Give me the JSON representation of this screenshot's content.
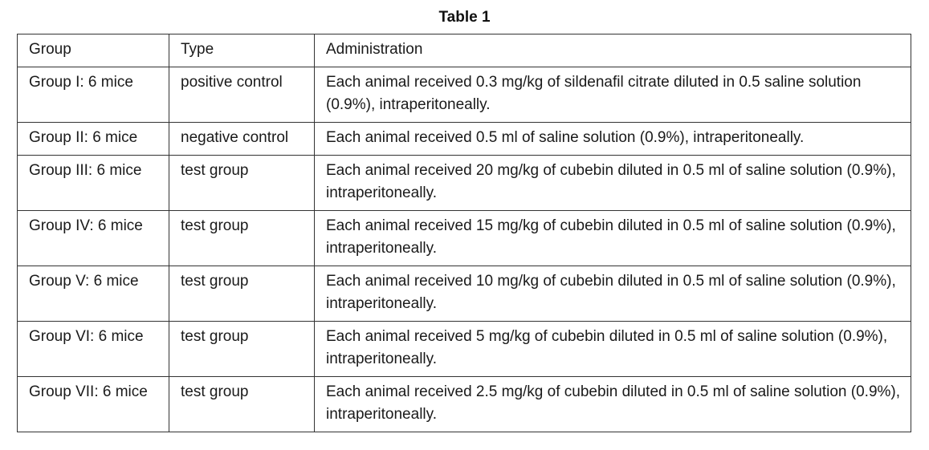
{
  "title": "Table 1",
  "table": {
    "columns": [
      "Group",
      "Type",
      "Administration"
    ],
    "rows": [
      {
        "group": "Group I: 6 mice",
        "type": "positive control",
        "administration": "Each animal received 0.3 mg/kg of sildenafil citrate diluted in 0.5 saline solution (0.9%), intraperitoneally."
      },
      {
        "group": "Group II: 6 mice",
        "type": "negative control",
        "administration": "Each animal received 0.5 ml of saline solution (0.9%), intraperitoneally."
      },
      {
        "group": "Group III: 6 mice",
        "type": "test group",
        "administration": "Each animal received 20 mg/kg of cubebin diluted in 0.5 ml of saline solution (0.9%), intraperitoneally."
      },
      {
        "group": "Group IV: 6 mice",
        "type": "test group",
        "administration": "Each animal received 15 mg/kg of cubebin diluted in 0.5 ml of saline solution (0.9%), intraperitoneally."
      },
      {
        "group": "Group V: 6 mice",
        "type": "test group",
        "administration": "Each animal received 10 mg/kg of cubebin diluted in 0.5 ml of saline solution (0.9%), intraperitoneally."
      },
      {
        "group": "Group VI: 6 mice",
        "type": "test group",
        "administration": "Each animal received 5 mg/kg of cubebin diluted in 0.5 ml of saline solution (0.9%), intraperitoneally."
      },
      {
        "group": "Group VII: 6 mice",
        "type": "test group",
        "administration": "Each animal received 2.5 mg/kg of cubebin diluted in 0.5 ml of saline solution (0.9%), intraperitoneally."
      }
    ]
  }
}
